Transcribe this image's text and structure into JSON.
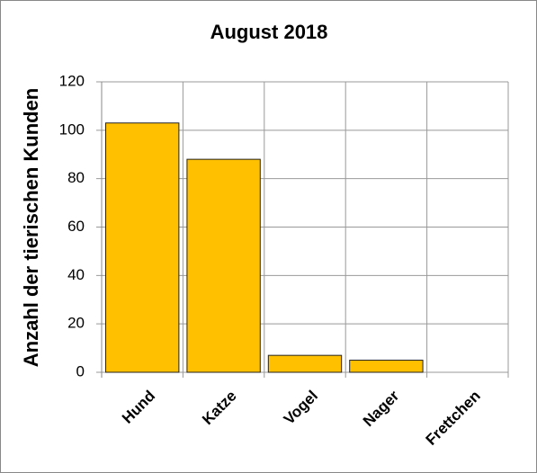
{
  "chart_data": {
    "type": "bar",
    "title": "August 2018",
    "y_label": "Anzahl der tierischen Kunden",
    "categories": [
      "Hund",
      "Katze",
      "Vogel",
      "Nager",
      "Frettchen"
    ],
    "values": [
      103,
      88,
      7,
      5,
      0
    ],
    "color": "#ffc000",
    "ylim": [
      0,
      120
    ],
    "yticks": [
      0,
      20,
      40,
      60,
      80,
      100,
      120
    ],
    "grid": true
  }
}
